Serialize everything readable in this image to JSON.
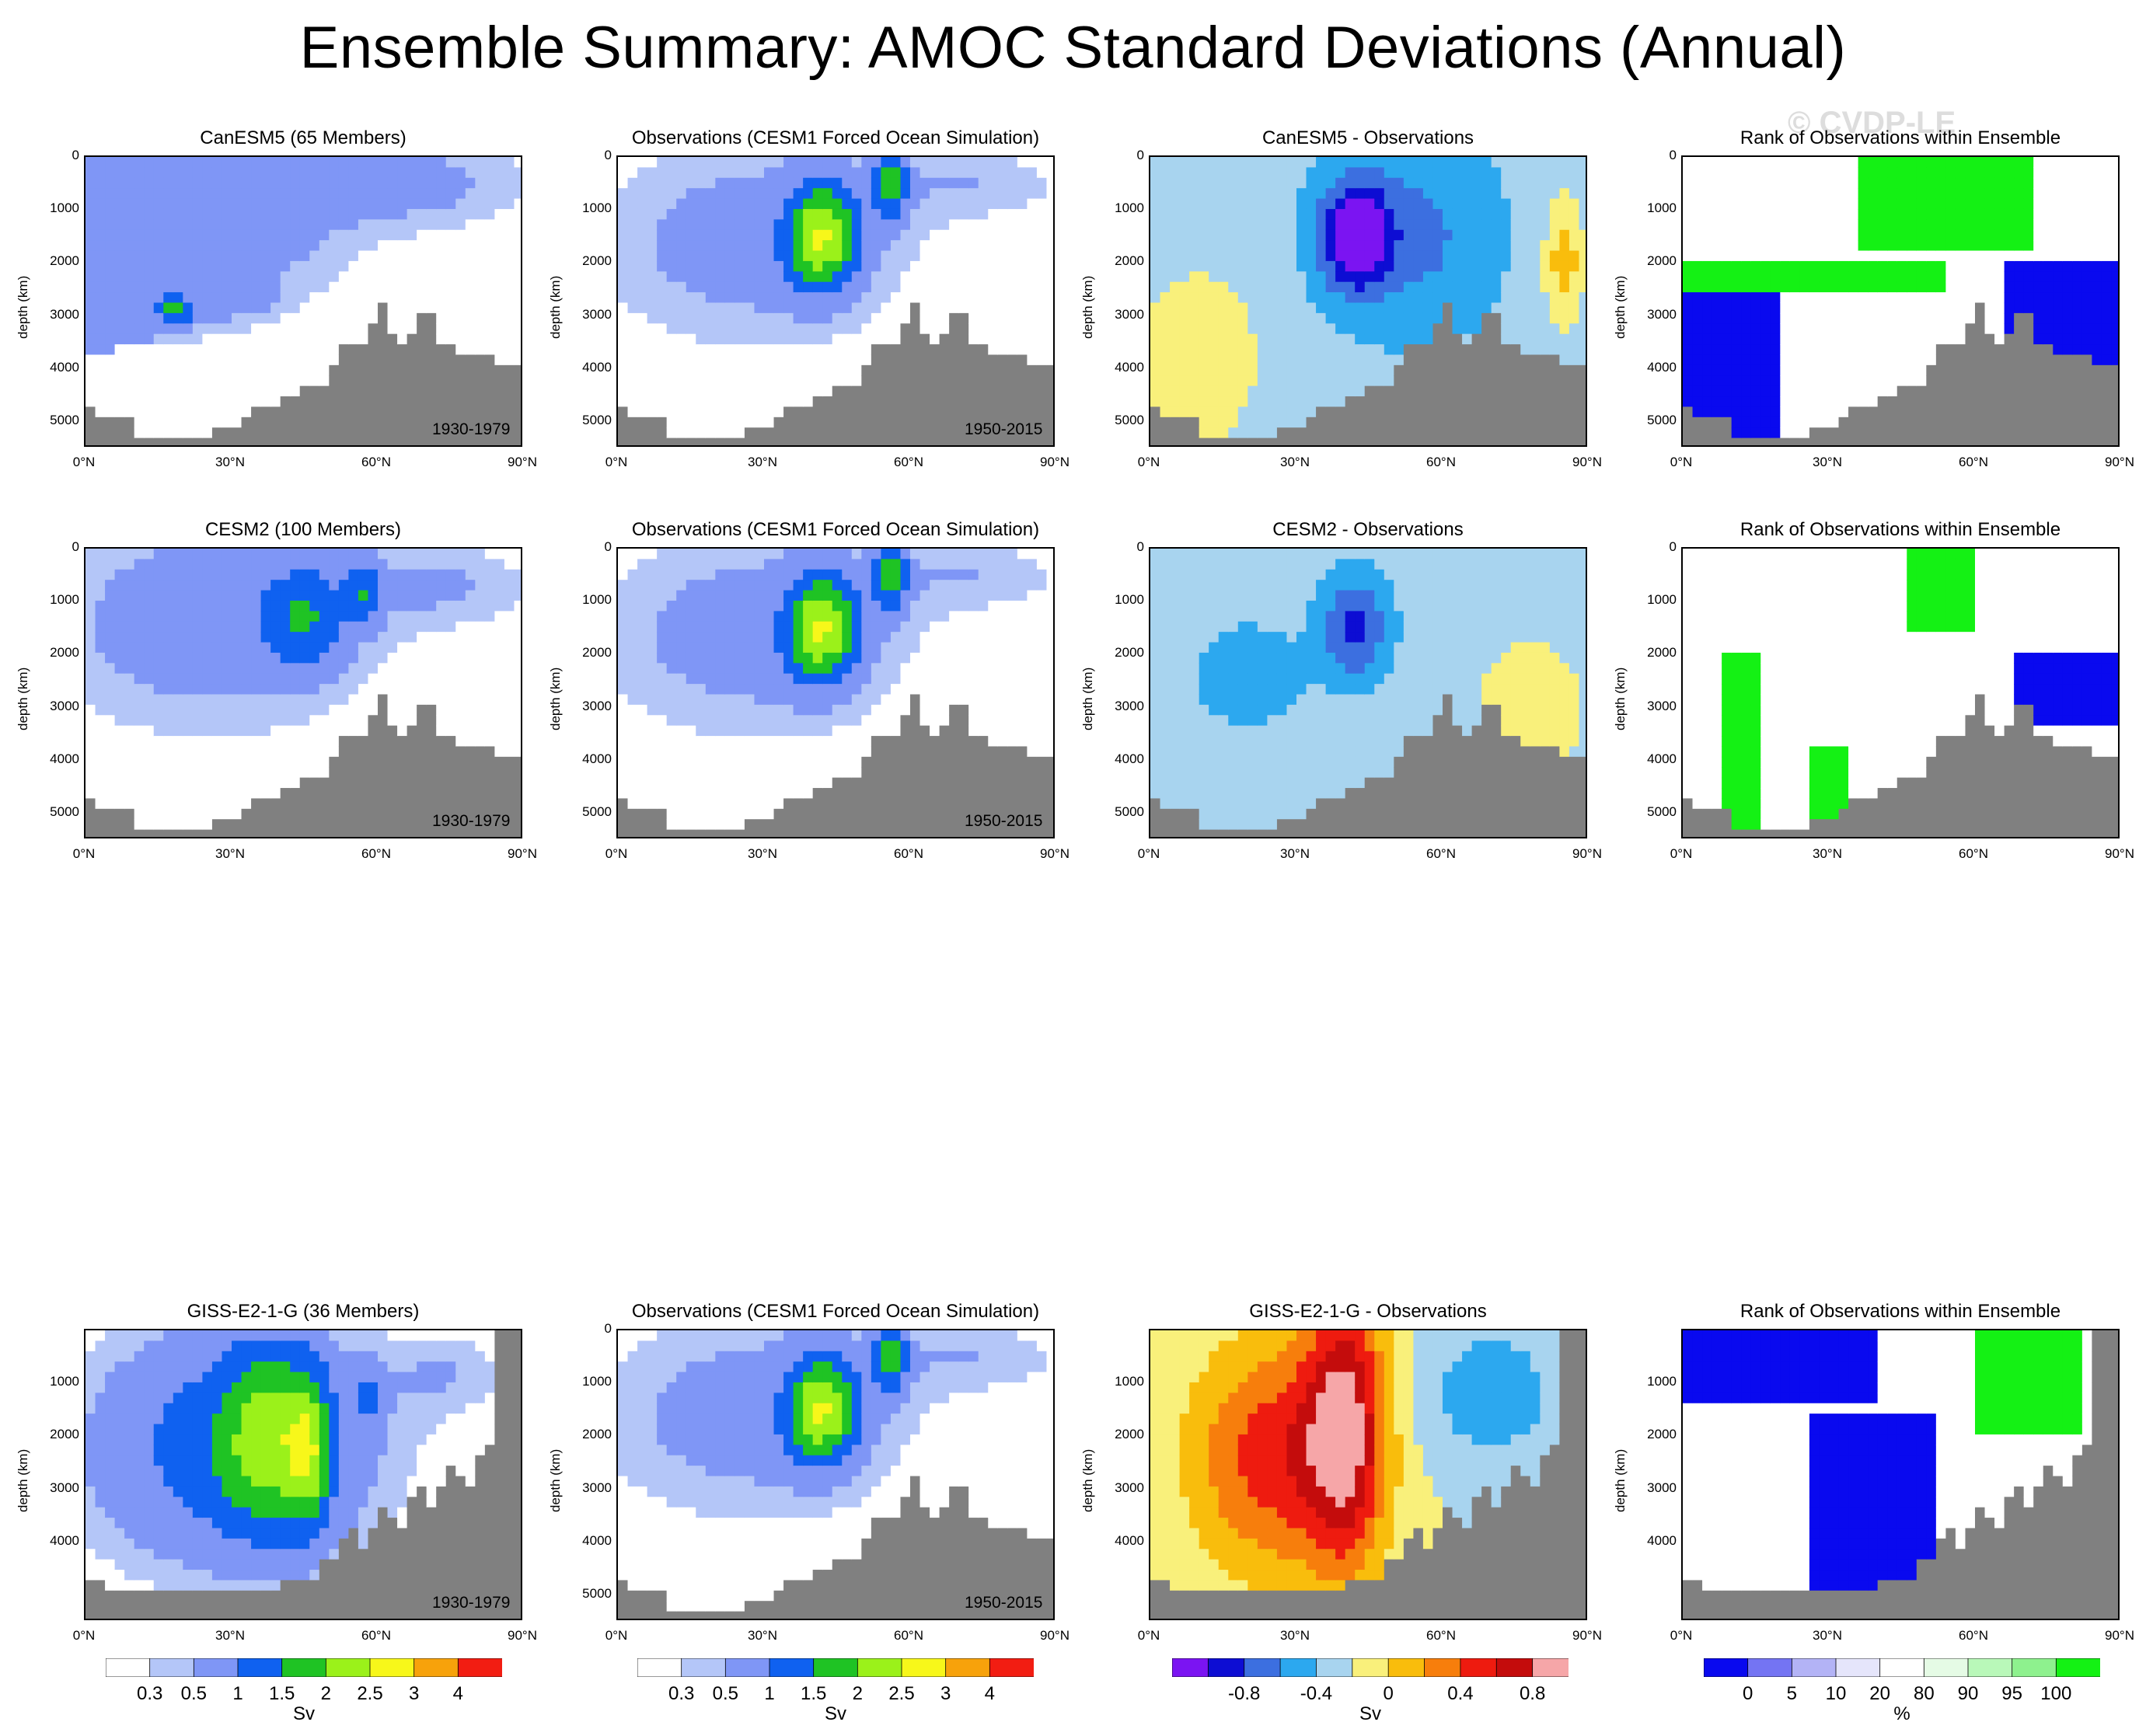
{
  "main_title": "Ensemble Summary: AMOC Standard Deviations (Annual)",
  "watermark": "© CVDP-LE",
  "colors": {
    "land": "#808080",
    "sd_levels": [
      "#ffffff",
      "#b4c6f8",
      "#7f96f6",
      "#0f61f0",
      "#1fc324",
      "#9bf11a",
      "#f7f71a",
      "#f7a20b",
      "#f21d12"
    ],
    "diff_levels": [
      "#7b14f2",
      "#0d0dd3",
      "#3c6fe0",
      "#2ca8ef",
      "#a8d4ef",
      "#f9f07b",
      "#f9bd0c",
      "#f77e0c",
      "#ee1b0f",
      "#c40c0c",
      "#f6a6a8"
    ],
    "rank_levels": [
      "#0909ef",
      "#7474f3",
      "#b3b3f6",
      "#e5e5fb",
      "#ffffff",
      "#e5fbe5",
      "#b9f8b9",
      "#8ef18e",
      "#14f114"
    ]
  },
  "chart_data": [
    {
      "type": "heatmap",
      "id": "r1c1",
      "title": "CanESM5 (65 Members)",
      "period": "1930-1979",
      "ylabel": "depth (km)",
      "field": "sd",
      "pattern": "canesm5",
      "yticks": [
        "0",
        "1000",
        "2000",
        "3000",
        "4000",
        "5000"
      ],
      "xticks": [
        "0°N",
        "30°N",
        "60°N",
        "90°N"
      ]
    },
    {
      "type": "heatmap",
      "id": "r1c2",
      "title": "Observations (CESM1 Forced Ocean Simulation)",
      "period": "1950-2015",
      "ylabel": "depth (km)",
      "field": "sd",
      "pattern": "obs",
      "yticks": [
        "0",
        "1000",
        "2000",
        "3000",
        "4000",
        "5000"
      ],
      "xticks": [
        "0°N",
        "30°N",
        "60°N",
        "90°N"
      ]
    },
    {
      "type": "heatmap",
      "id": "r1c3",
      "title": "CanESM5 - Observations",
      "period": "",
      "ylabel": "depth (km)",
      "field": "diff",
      "pattern": "diff_canesm5",
      "yticks": [
        "0",
        "1000",
        "2000",
        "3000",
        "4000",
        "5000"
      ],
      "xticks": [
        "0°N",
        "30°N",
        "60°N",
        "90°N"
      ]
    },
    {
      "type": "heatmap",
      "id": "r1c4",
      "title": "Rank of Observations within Ensemble",
      "period": "",
      "ylabel": "depth (km)",
      "field": "rank",
      "pattern": "rank_canesm5",
      "yticks": [
        "0",
        "1000",
        "2000",
        "3000",
        "4000",
        "5000"
      ],
      "xticks": [
        "0°N",
        "30°N",
        "60°N",
        "90°N"
      ]
    },
    {
      "type": "heatmap",
      "id": "r2c1",
      "title": "CESM2 (100 Members)",
      "period": "1930-1979",
      "ylabel": "depth (km)",
      "field": "sd",
      "pattern": "cesm2",
      "yticks": [
        "0",
        "1000",
        "2000",
        "3000",
        "4000",
        "5000"
      ],
      "xticks": [
        "0°N",
        "30°N",
        "60°N",
        "90°N"
      ]
    },
    {
      "type": "heatmap",
      "id": "r2c2",
      "title": "Observations (CESM1 Forced Ocean Simulation)",
      "period": "1950-2015",
      "ylabel": "depth (km)",
      "field": "sd",
      "pattern": "obs",
      "yticks": [
        "0",
        "1000",
        "2000",
        "3000",
        "4000",
        "5000"
      ],
      "xticks": [
        "0°N",
        "30°N",
        "60°N",
        "90°N"
      ]
    },
    {
      "type": "heatmap",
      "id": "r2c3",
      "title": "CESM2 - Observations",
      "period": "",
      "ylabel": "depth (km)",
      "field": "diff",
      "pattern": "diff_cesm2",
      "yticks": [
        "0",
        "1000",
        "2000",
        "3000",
        "4000",
        "5000"
      ],
      "xticks": [
        "0°N",
        "30°N",
        "60°N",
        "90°N"
      ]
    },
    {
      "type": "heatmap",
      "id": "r2c4",
      "title": "Rank of Observations within Ensemble",
      "period": "",
      "ylabel": "depth (km)",
      "field": "rank",
      "pattern": "rank_cesm2",
      "yticks": [
        "0",
        "1000",
        "2000",
        "3000",
        "4000",
        "5000"
      ],
      "xticks": [
        "0°N",
        "30°N",
        "60°N",
        "90°N"
      ]
    },
    {
      "type": "heatmap",
      "id": "r3c1",
      "title": "GISS-E2-1-G (36 Members)",
      "period": "1930-1979",
      "ylabel": "depth (km)",
      "field": "sd",
      "pattern": "giss",
      "yticks": [
        "1000",
        "2000",
        "3000",
        "4000"
      ],
      "xticks": [
        "0°N",
        "30°N",
        "60°N",
        "90°N"
      ]
    },
    {
      "type": "heatmap",
      "id": "r3c2",
      "title": "Observations (CESM1 Forced Ocean Simulation)",
      "period": "1950-2015",
      "ylabel": "depth (km)",
      "field": "sd",
      "pattern": "obs",
      "yticks": [
        "0",
        "1000",
        "2000",
        "3000",
        "4000",
        "5000"
      ],
      "xticks": [
        "0°N",
        "30°N",
        "60°N",
        "90°N"
      ]
    },
    {
      "type": "heatmap",
      "id": "r3c3",
      "title": "GISS-E2-1-G - Observations",
      "period": "",
      "ylabel": "depth (km)",
      "field": "diff",
      "pattern": "diff_giss",
      "yticks": [
        "1000",
        "2000",
        "3000",
        "4000"
      ],
      "xticks": [
        "0°N",
        "30°N",
        "60°N",
        "90°N"
      ]
    },
    {
      "type": "heatmap",
      "id": "r3c4",
      "title": "Rank of Observations within Ensemble",
      "period": "",
      "ylabel": "depth (km)",
      "field": "rank",
      "pattern": "rank_giss",
      "yticks": [
        "1000",
        "2000",
        "3000",
        "4000"
      ],
      "xticks": [
        "0°N",
        "30°N",
        "60°N",
        "90°N"
      ]
    }
  ],
  "colorbars": [
    {
      "id": "cb-sd-1",
      "unit": "Sv",
      "field": "sd",
      "labels": [
        "0.3",
        "0.5",
        "1",
        "1.5",
        "2",
        "2.5",
        "3",
        "4"
      ]
    },
    {
      "id": "cb-sd-2",
      "unit": "Sv",
      "field": "sd",
      "labels": [
        "0.3",
        "0.5",
        "1",
        "1.5",
        "2",
        "2.5",
        "3",
        "4"
      ]
    },
    {
      "id": "cb-diff",
      "unit": "Sv",
      "field": "diff",
      "labels": [
        "-0.8",
        "-0.4",
        "0",
        "0.4",
        "0.8"
      ]
    },
    {
      "id": "cb-rank",
      "unit": "%",
      "field": "rank",
      "labels": [
        "0",
        "5",
        "10",
        "20",
        "80",
        "90",
        "95",
        "100"
      ]
    }
  ]
}
